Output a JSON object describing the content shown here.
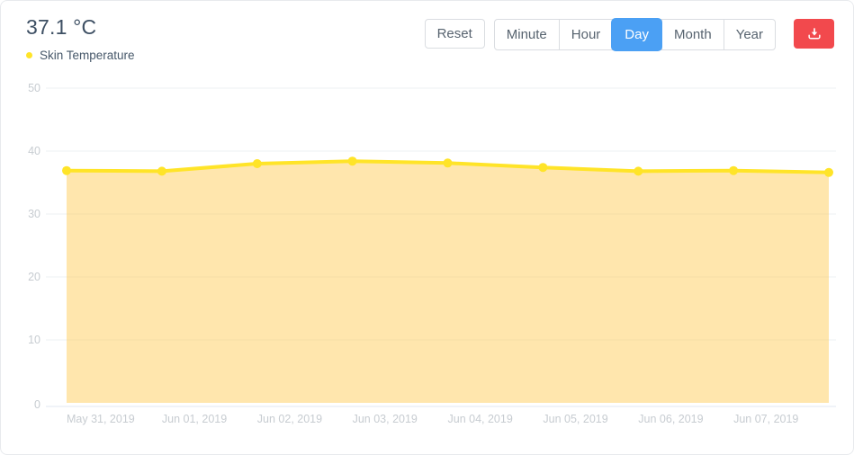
{
  "header": {
    "title": "37.1 °C",
    "legend": {
      "label": "Skin Temperature",
      "color": "#ffe428"
    }
  },
  "toolbar": {
    "reset_label": "Reset",
    "range_buttons": [
      "Minute",
      "Hour",
      "Day",
      "Month",
      "Year"
    ],
    "active_range": "Day",
    "active_color": "#4ba0f4",
    "export_color": "#f2494d"
  },
  "chart_data": {
    "type": "area",
    "title": "37.1 °C",
    "x_labels": [
      "May 31, 2019",
      "Jun 01, 2019",
      "Jun 02, 2019",
      "Jun 03, 2019",
      "Jun 04, 2019",
      "Jun 05, 2019",
      "Jun 06, 2019",
      "Jun 07, 2019"
    ],
    "series": [
      {
        "name": "Skin Temperature",
        "values": [
          36.9,
          36.8,
          38.0,
          38.4,
          38.1,
          37.4,
          36.8,
          36.9,
          36.6
        ],
        "color": "#ffe428",
        "fill_color": "rgba(255,195,60,0.42)"
      }
    ],
    "unlabeled_trailing_points": 1,
    "ylabel": "",
    "xlabel": "",
    "yticks": [
      0,
      10,
      20,
      30,
      40,
      50
    ],
    "ylim": [
      0,
      50
    ],
    "grid": true,
    "legend_position": "top-left",
    "colors": {
      "grid": "#eef0f3",
      "axis_line": "#e1e7f0",
      "axis_text": "#c7ccd1"
    }
  }
}
